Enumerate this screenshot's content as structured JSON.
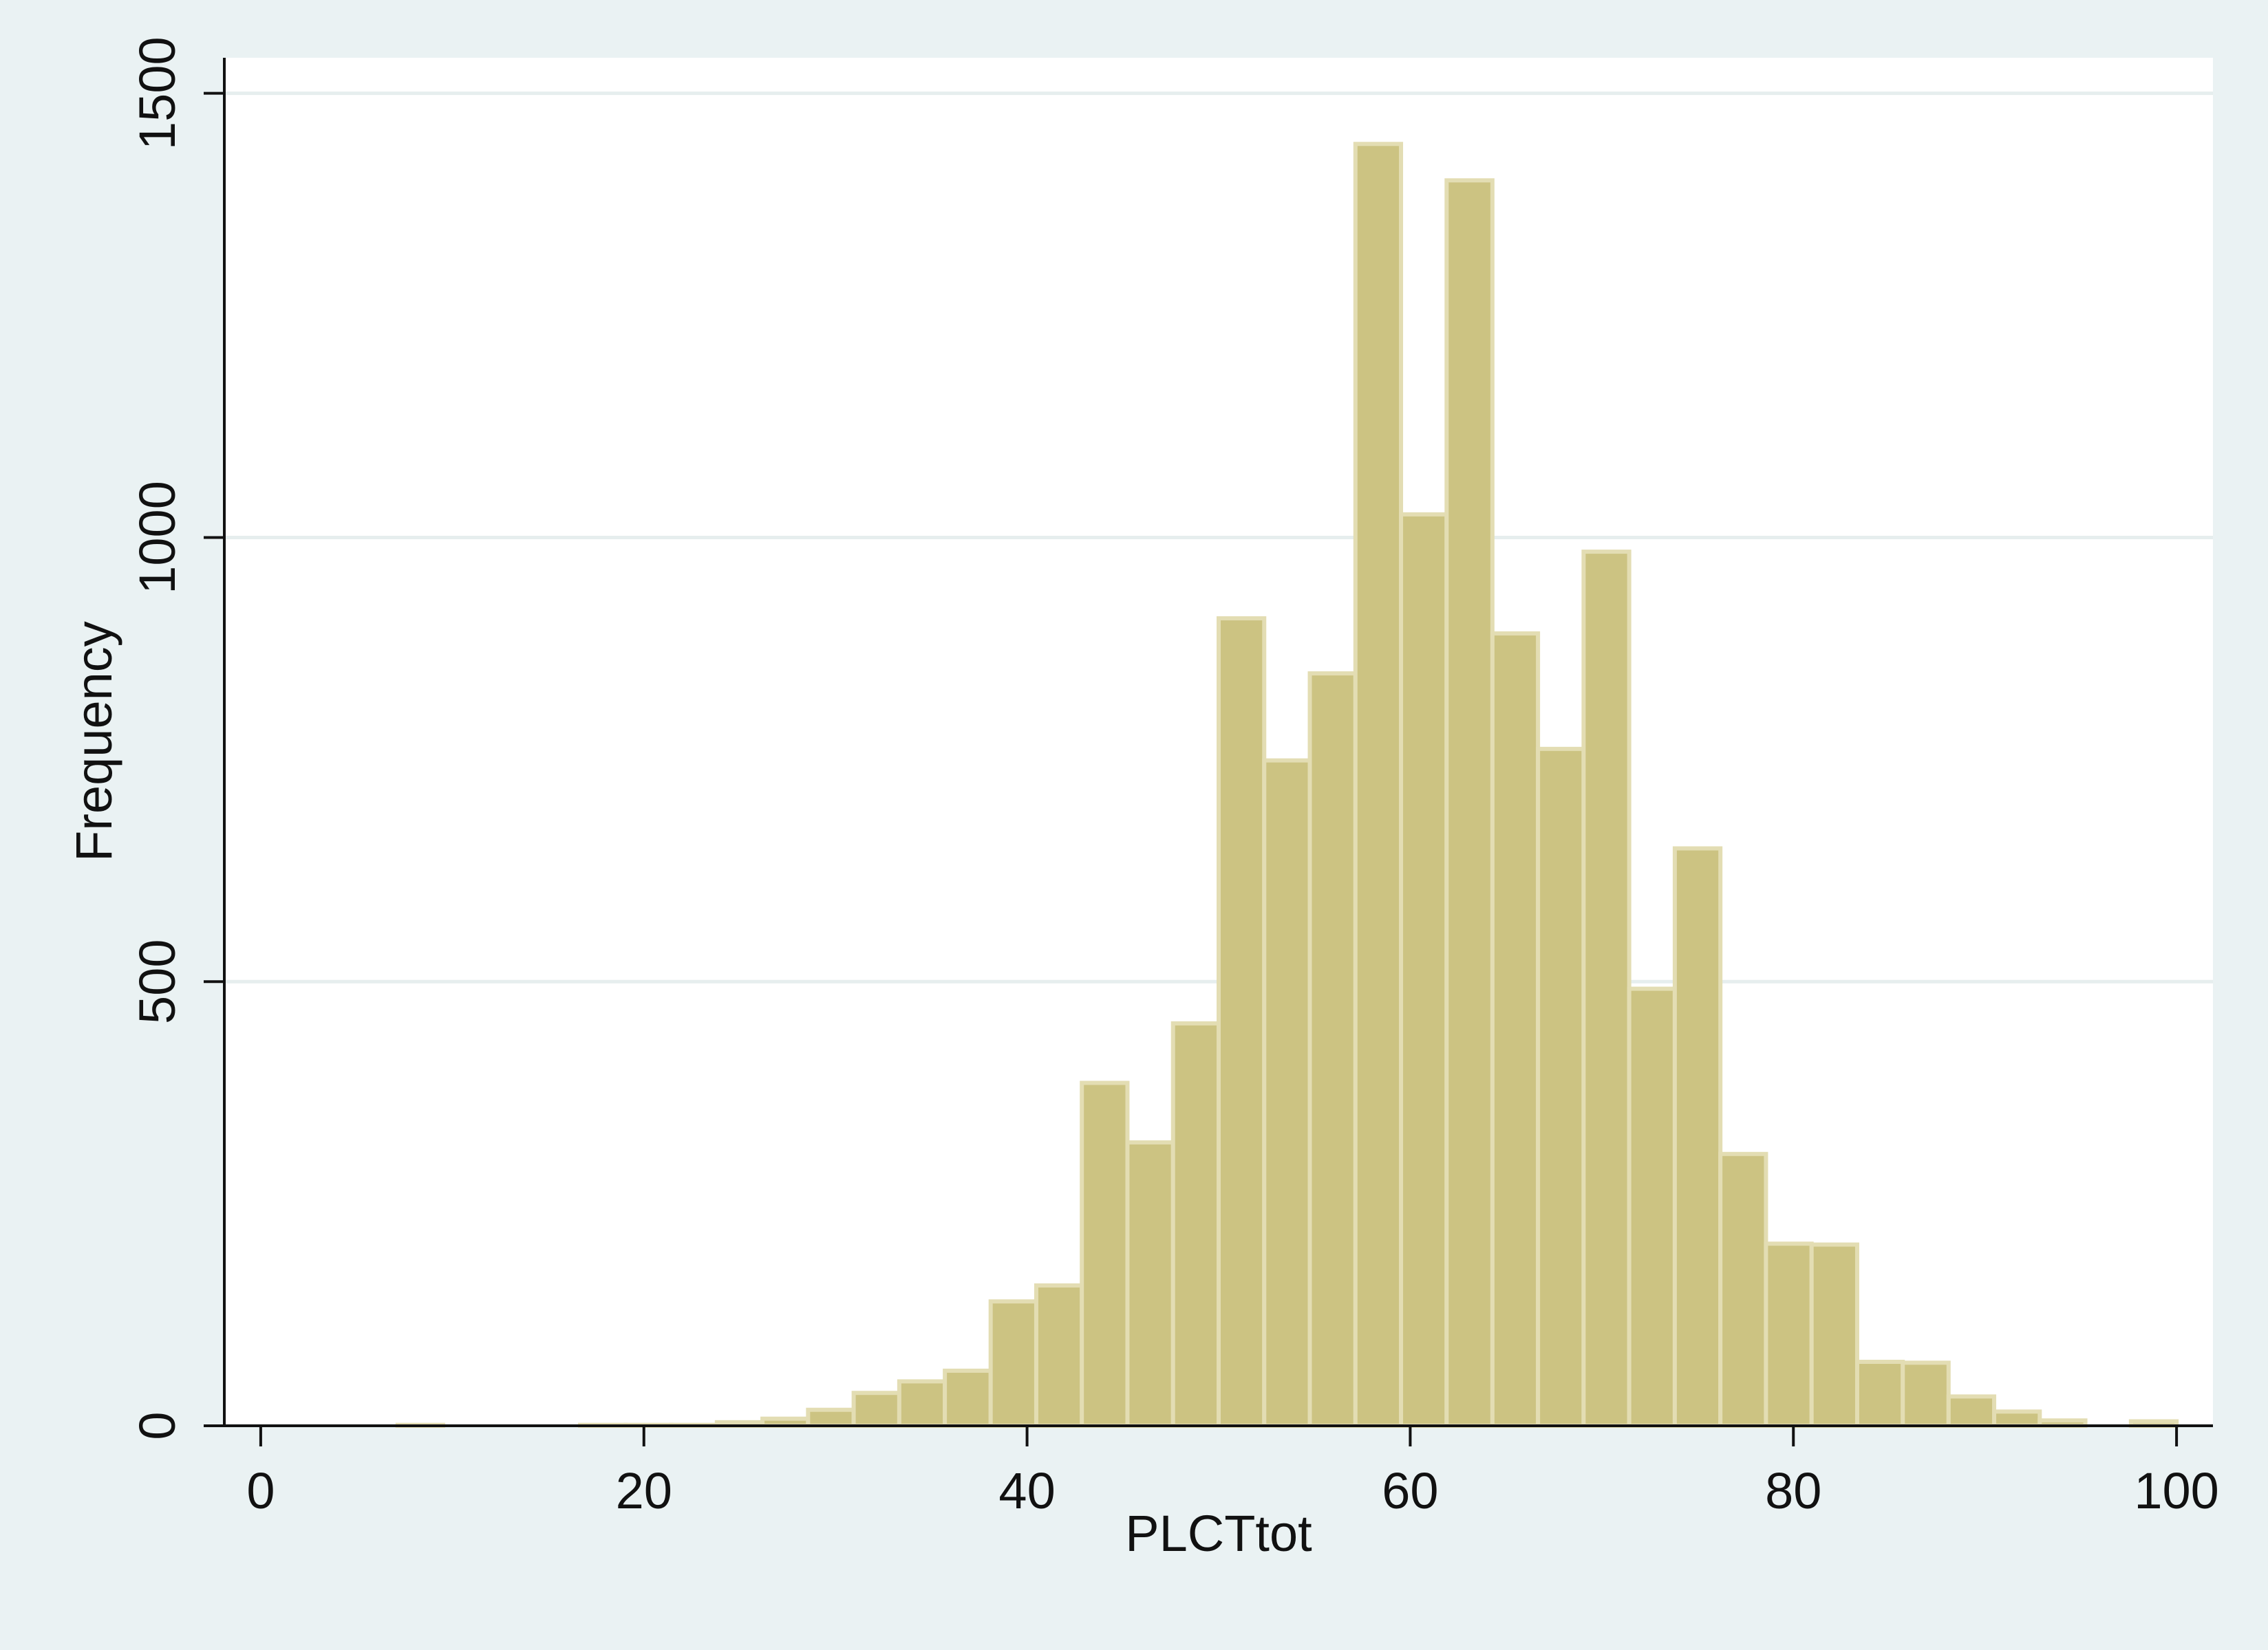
{
  "chart_data": {
    "type": "histogram",
    "x_label": "PLCTtot",
    "y_label": "Frequency",
    "bins": [
      0,
      2.38,
      4.76,
      7.14,
      9.52,
      11.9,
      14.29,
      16.67,
      19.05,
      21.43,
      23.81,
      26.19,
      28.57,
      30.95,
      33.33,
      35.71,
      38.1,
      40.48,
      42.86,
      45.24,
      47.62,
      50,
      52.38,
      54.76,
      57.14,
      59.52,
      61.9,
      64.29,
      66.67,
      69.05,
      71.43,
      73.81,
      76.19,
      78.57,
      80.95,
      83.33,
      85.71,
      88.1,
      90.48,
      92.86,
      95.24,
      97.62,
      100
    ],
    "values": [
      0,
      0,
      0,
      1,
      0,
      0,
      0,
      1,
      1,
      1,
      4,
      8,
      18,
      37,
      50,
      62,
      140,
      158,
      386,
      319,
      453,
      909,
      749,
      847,
      1443,
      1026,
      1402,
      892,
      762,
      984,
      492,
      650,
      306,
      205,
      204,
      72,
      71,
      33,
      16,
      6,
      0,
      5
    ],
    "color": "#ccc382",
    "xlim": [
      -1.9,
      101.9
    ],
    "ylim": [
      0,
      1540
    ],
    "xticks": [
      0,
      20,
      40,
      60,
      80,
      100
    ],
    "yticks": [
      0,
      500,
      1000,
      1500
    ],
    "grid": true
  }
}
